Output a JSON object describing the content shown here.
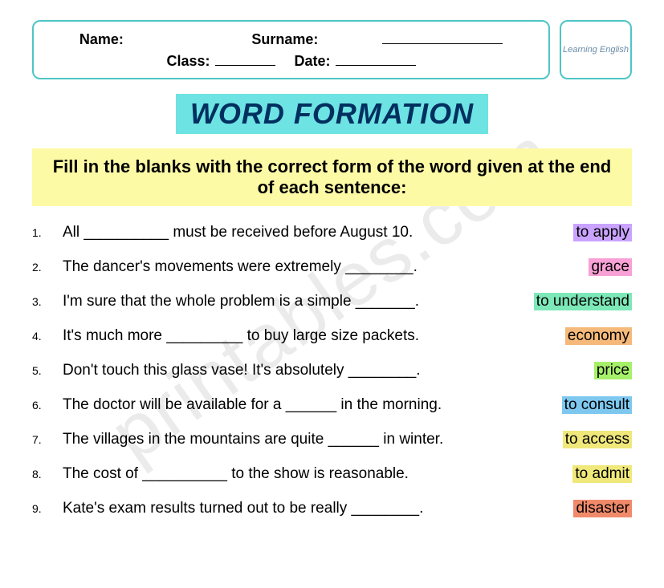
{
  "watermark": "printables.com",
  "header": {
    "name_label": "Name:",
    "surname_label": "Surname:",
    "class_label": "Class:",
    "date_label": "Date:",
    "logo_text": "Learning English",
    "box_border_color": "#4ec5c5"
  },
  "title": {
    "text": "WORD FORMATION",
    "background_color": "#6ee3e3",
    "text_color": "#003060"
  },
  "instructions": {
    "text": "Fill in the blanks with the correct form of the word given at the end of each sentence:",
    "background_color": "#fdfaa6"
  },
  "items": [
    {
      "num": "1.",
      "sentence": "All __________ must be received before August 10.",
      "word": "to apply",
      "color": "#c9a3ff"
    },
    {
      "num": "2.",
      "sentence": "The dancer's movements were extremely ________.",
      "word": "grace",
      "color": "#f7a1d6"
    },
    {
      "num": "3.",
      "sentence": "I'm sure that the whole problem is a simple _______.",
      "word": "to understand",
      "color": "#7de8b8"
    },
    {
      "num": "4.",
      "sentence": "It's much more _________ to buy large size packets.",
      "word": "economy",
      "color": "#f5b97a"
    },
    {
      "num": "5.",
      "sentence": "Don't touch this glass vase! It's absolutely ________.",
      "word": "price",
      "color": "#a6f06a"
    },
    {
      "num": "6.",
      "sentence": "The doctor will be available for a ______ in the morning.",
      "word": "to consult",
      "color": "#7ec8f0"
    },
    {
      "num": "7.",
      "sentence": "The villages in the mountains are quite ______ in winter.",
      "word": "to access",
      "color": "#f0e87a"
    },
    {
      "num": "8.",
      "sentence": "The cost of __________ to the show is reasonable.",
      "word": "to admit",
      "color": "#f0e87a"
    },
    {
      "num": "9.",
      "sentence": "Kate's exam results turned out to be really ________.",
      "word": "disaster",
      "color": "#f08a6a"
    }
  ],
  "blank_widths": {
    "name": "140px",
    "surname": "150px",
    "class": "75px",
    "date": "100px"
  }
}
